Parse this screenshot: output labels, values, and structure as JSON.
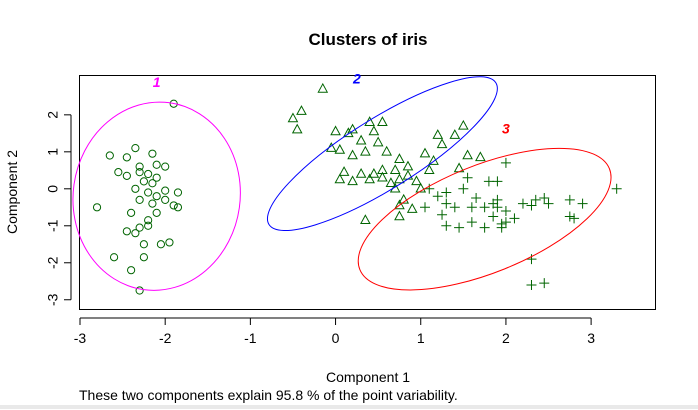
{
  "chart_data": {
    "type": "scatter",
    "title": "Clusters of iris",
    "xlabel": "Component 1",
    "ylabel": "Component 2",
    "subtitle": "These two components explain 95.8 % of the point variability.",
    "xlim": [
      -3.0,
      3.75
    ],
    "ylim": [
      -3.25,
      3.05
    ],
    "x_ticks": [
      -3,
      -2,
      -1,
      0,
      1,
      2,
      3
    ],
    "y_ticks": [
      -3,
      -2,
      -1,
      0,
      1,
      2
    ],
    "grid": false,
    "legend": "none",
    "point_color": "#006400",
    "clusters": [
      {
        "label": "1",
        "label_color": "#ff00ff",
        "ellipse_color": "#ff00ff",
        "marker": "circle",
        "ellipse": {
          "cx": -2.1,
          "cy": -0.2,
          "rx": 0.98,
          "ry": 2.55,
          "angle": 8
        },
        "label_pos": [
          -2.1,
          2.75
        ],
        "points": [
          [
            -1.9,
            2.3
          ],
          [
            -2.3,
            -2.75
          ],
          [
            -2.8,
            -0.5
          ],
          [
            -1.95,
            -1.45
          ],
          [
            -2.65,
            0.9
          ],
          [
            -2.45,
            0.85
          ],
          [
            -2.35,
            1.1
          ],
          [
            -2.15,
            0.95
          ],
          [
            -2.3,
            0.6
          ],
          [
            -2.1,
            0.65
          ],
          [
            -2.0,
            0.6
          ],
          [
            -2.45,
            0.35
          ],
          [
            -2.2,
            0.4
          ],
          [
            -2.1,
            0.3
          ],
          [
            -2.25,
            0.2
          ],
          [
            -2.35,
            0.0
          ],
          [
            -2.2,
            -0.1
          ],
          [
            -2.1,
            -0.2
          ],
          [
            -2.0,
            -0.05
          ],
          [
            -2.3,
            -0.3
          ],
          [
            -2.15,
            -0.4
          ],
          [
            -2.4,
            -0.65
          ],
          [
            -2.1,
            -0.65
          ],
          [
            -1.9,
            -0.45
          ],
          [
            -1.85,
            -0.1
          ],
          [
            -2.2,
            -0.85
          ],
          [
            -2.3,
            -1.05
          ],
          [
            -2.45,
            -1.15
          ],
          [
            -2.35,
            -1.2
          ],
          [
            -2.25,
            -1.5
          ],
          [
            -2.05,
            -1.5
          ],
          [
            -2.4,
            -2.2
          ],
          [
            -2.6,
            -1.85
          ],
          [
            -2.25,
            -1.85
          ],
          [
            -1.85,
            -0.5
          ],
          [
            -2.55,
            0.45
          ],
          [
            -2.0,
            -0.3
          ],
          [
            -2.15,
            0.15
          ],
          [
            -2.3,
            0.45
          ],
          [
            -2.2,
            -1.0
          ]
        ]
      },
      {
        "label": "2",
        "label_color": "#0000ff",
        "ellipse_color": "#0000ff",
        "marker": "triangle",
        "ellipse": {
          "cx": 0.55,
          "cy": 0.95,
          "rx": 1.57,
          "ry": 0.95,
          "angle": -32
        },
        "label_pos": [
          0.25,
          2.85
        ],
        "points": [
          [
            -0.15,
            2.7
          ],
          [
            -0.4,
            2.1
          ],
          [
            -0.5,
            1.9
          ],
          [
            -0.45,
            1.6
          ],
          [
            0.0,
            1.55
          ],
          [
            0.15,
            1.5
          ],
          [
            0.2,
            1.6
          ],
          [
            0.45,
            1.55
          ],
          [
            0.4,
            1.8
          ],
          [
            0.55,
            1.8
          ],
          [
            0.3,
            1.3
          ],
          [
            -0.05,
            1.1
          ],
          [
            0.05,
            1.05
          ],
          [
            0.2,
            0.9
          ],
          [
            0.35,
            1.0
          ],
          [
            0.5,
            1.25
          ],
          [
            0.6,
            1.0
          ],
          [
            0.75,
            0.8
          ],
          [
            0.85,
            0.6
          ],
          [
            0.7,
            0.5
          ],
          [
            0.55,
            0.5
          ],
          [
            0.45,
            0.4
          ],
          [
            0.3,
            0.4
          ],
          [
            0.1,
            0.45
          ],
          [
            0.05,
            0.25
          ],
          [
            0.2,
            0.2
          ],
          [
            0.4,
            0.25
          ],
          [
            0.55,
            0.3
          ],
          [
            0.65,
            0.15
          ],
          [
            0.75,
            0.25
          ],
          [
            0.85,
            0.35
          ],
          [
            0.95,
            0.2
          ],
          [
            1.0,
            0.0
          ],
          [
            0.7,
            0.0
          ],
          [
            0.8,
            -0.3
          ],
          [
            0.75,
            -0.45
          ],
          [
            0.9,
            -0.55
          ],
          [
            0.75,
            -0.75
          ],
          [
            1.1,
            0.5
          ],
          [
            1.15,
            0.75
          ],
          [
            1.05,
            0.95
          ],
          [
            1.25,
            1.2
          ],
          [
            1.4,
            1.45
          ],
          [
            1.5,
            1.7
          ],
          [
            1.2,
            1.45
          ],
          [
            0.35,
            -0.85
          ],
          [
            1.55,
            0.9
          ],
          [
            1.7,
            0.85
          ],
          [
            1.45,
            0.55
          ]
        ]
      },
      {
        "label": "3",
        "label_color": "#ff0000",
        "ellipse_color": "#ff0000",
        "marker": "plus",
        "ellipse": {
          "cx": 1.75,
          "cy": -0.82,
          "rx": 1.58,
          "ry": 1.45,
          "angle": -22
        },
        "label_pos": [
          2.0,
          1.5
        ],
        "points": [
          [
            3.3,
            0.0
          ],
          [
            2.0,
            0.7
          ],
          [
            1.8,
            0.2
          ],
          [
            1.9,
            0.2
          ],
          [
            1.5,
            0.0
          ],
          [
            1.3,
            -0.1
          ],
          [
            1.1,
            0.0
          ],
          [
            1.3,
            -0.4
          ],
          [
            1.4,
            -0.5
          ],
          [
            1.6,
            -0.5
          ],
          [
            1.75,
            -0.5
          ],
          [
            1.9,
            -0.5
          ],
          [
            2.0,
            -0.6
          ],
          [
            2.1,
            -0.8
          ],
          [
            2.2,
            -0.4
          ],
          [
            2.3,
            -0.45
          ],
          [
            2.35,
            -0.3
          ],
          [
            2.45,
            -0.25
          ],
          [
            2.75,
            -0.3
          ],
          [
            2.9,
            -0.4
          ],
          [
            2.8,
            -0.8
          ],
          [
            2.75,
            -0.75
          ],
          [
            2.0,
            -0.9
          ],
          [
            1.95,
            -0.95
          ],
          [
            1.6,
            -0.9
          ],
          [
            1.3,
            -1.0
          ],
          [
            1.45,
            -1.05
          ],
          [
            1.25,
            -0.7
          ],
          [
            1.05,
            -0.5
          ],
          [
            1.9,
            -0.3
          ],
          [
            1.95,
            -1.05
          ],
          [
            2.3,
            -1.9
          ],
          [
            2.3,
            -2.6
          ],
          [
            2.45,
            -2.55
          ],
          [
            1.55,
            0.3
          ],
          [
            1.65,
            -0.25
          ],
          [
            1.85,
            -0.75
          ],
          [
            1.2,
            -0.2
          ],
          [
            2.5,
            -0.4
          ],
          [
            1.75,
            -1.05
          ],
          [
            1.85,
            -0.4
          ]
        ]
      }
    ]
  }
}
